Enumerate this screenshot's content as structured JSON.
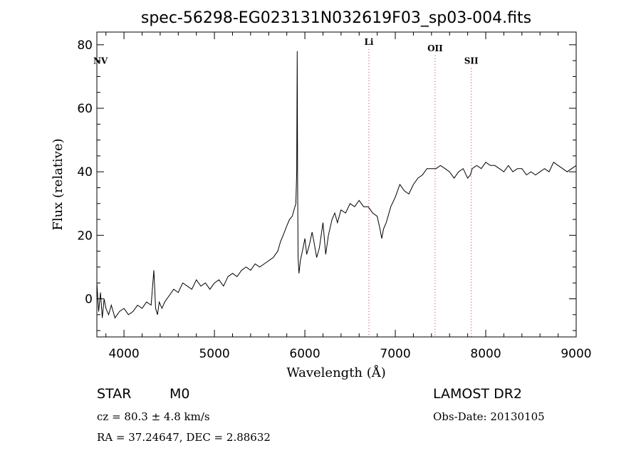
{
  "chart_data": {
    "type": "line",
    "title": "spec-56298-EG023131N032619F03_sp03-004.fits",
    "xlabel": "Wavelength (Å)",
    "ylabel": "Flux (relative)",
    "xlim": [
      3700,
      9000
    ],
    "ylim": [
      -12,
      84
    ],
    "xticks": [
      4000,
      5000,
      6000,
      7000,
      8000,
      9000
    ],
    "yticks": [
      0,
      20,
      40,
      60,
      80
    ],
    "grid": false,
    "line_color": "#000000",
    "marker_color": "#b03030",
    "series": [
      {
        "x": [
          3700,
          3720,
          3740,
          3760,
          3780,
          3800,
          3830,
          3860,
          3900,
          3950,
          4000,
          4050,
          4100,
          4150,
          4200,
          4250,
          4300,
          4330,
          4350,
          4370,
          4390,
          4420,
          4450,
          4500,
          4550,
          4600,
          4650,
          4700,
          4750,
          4800,
          4850,
          4900,
          4950,
          5000,
          5050,
          5100,
          5150,
          5200,
          5250,
          5300,
          5350,
          5400,
          5450,
          5500,
          5550,
          5600,
          5650,
          5700,
          5730,
          5760,
          5800,
          5830,
          5860,
          5880,
          5900,
          5910,
          5915,
          5920,
          5925,
          5935,
          5950,
          5980,
          6000,
          6020,
          6050,
          6080,
          6100,
          6130,
          6160,
          6200,
          6230,
          6260,
          6300,
          6330,
          6360,
          6400,
          6450,
          6500,
          6550,
          6600,
          6650,
          6700,
          6750,
          6800,
          6830,
          6850,
          6870,
          6900,
          6950,
          7000,
          7050,
          7100,
          7150,
          7200,
          7250,
          7300,
          7350,
          7400,
          7450,
          7500,
          7550,
          7600,
          7650,
          7700,
          7750,
          7800,
          7830,
          7850,
          7900,
          7950,
          8000,
          8050,
          8100,
          8150,
          8200,
          8250,
          8300,
          8350,
          8400,
          8450,
          8500,
          8550,
          8600,
          8650,
          8700,
          8750,
          8800,
          8850,
          8900,
          8950,
          9000
        ],
        "y": [
          5,
          -4,
          2,
          -6,
          0,
          -3,
          -5,
          -2,
          -6,
          -4,
          -3,
          -5,
          -4,
          -2,
          -3,
          -1,
          -2,
          9,
          -3,
          -5,
          -1,
          -3,
          -1,
          1,
          3,
          2,
          5,
          4,
          3,
          6,
          4,
          5,
          3,
          5,
          6,
          4,
          7,
          8,
          7,
          9,
          10,
          9,
          11,
          10,
          11,
          12,
          13,
          15,
          18,
          20,
          23,
          25,
          26,
          28,
          30,
          40,
          78,
          35,
          13,
          8,
          12,
          16,
          19,
          14,
          17,
          21,
          18,
          13,
          16,
          24,
          14,
          20,
          25,
          27,
          24,
          28,
          27,
          30,
          29,
          31,
          29,
          29,
          27,
          26,
          22,
          19,
          22,
          24,
          29,
          32,
          36,
          34,
          33,
          36,
          38,
          39,
          41,
          41,
          41,
          42,
          41,
          40,
          38,
          40,
          41,
          38,
          39,
          41,
          42,
          41,
          43,
          42,
          42,
          41,
          40,
          42,
          40,
          41,
          41,
          39,
          40,
          39,
          40,
          41,
          40,
          43,
          42,
          41,
          40,
          41,
          42
        ]
      }
    ],
    "line_markers": [
      {
        "label": "NV",
        "x": 3740,
        "label_y": 74,
        "dotted": false
      },
      {
        "label": "Li",
        "x": 6708,
        "label_y": 80,
        "dotted": true
      },
      {
        "label": "OII",
        "x": 7440,
        "label_y": 78,
        "dotted": true
      },
      {
        "label": "SII",
        "x": 7840,
        "label_y": 74,
        "dotted": true
      }
    ]
  },
  "info": {
    "object_type": "STAR",
    "subclass": "M0",
    "survey": "LAMOST DR2",
    "cz": "cz = 80.3 ± 4.8 km/s",
    "obs_date": "Obs-Date: 20130105",
    "coords": "RA =  37.24647, DEC =   2.88632"
  }
}
